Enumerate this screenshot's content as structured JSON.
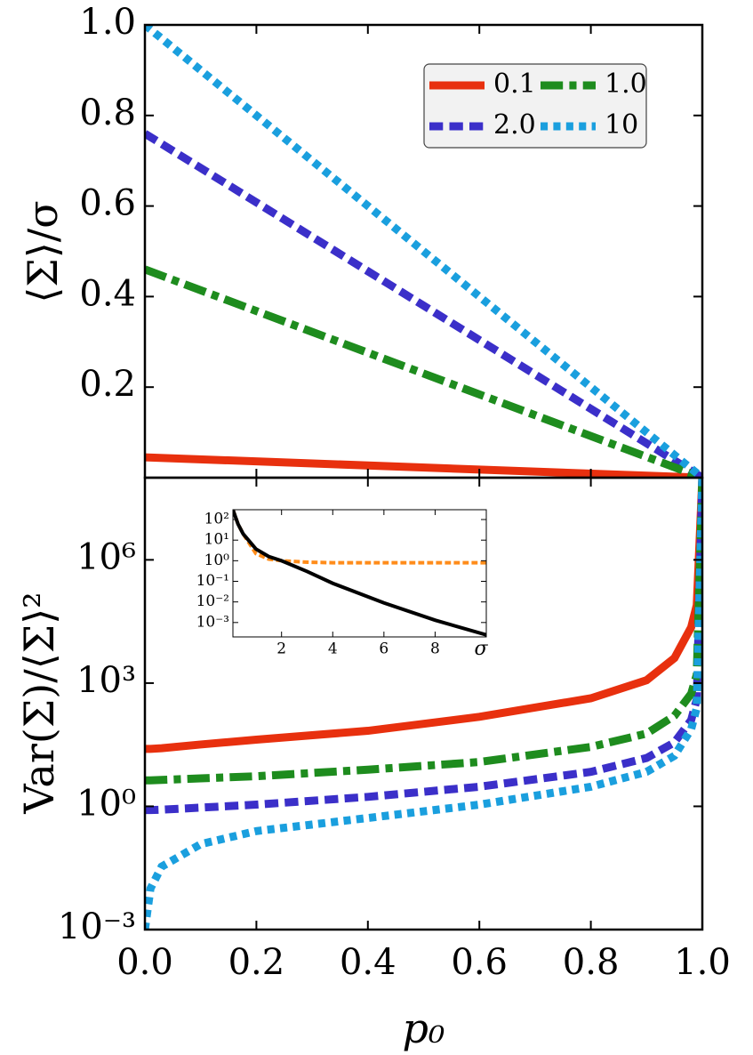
{
  "chart_data": [
    {
      "type": "line",
      "y_label": "⟨Σ⟩/σ",
      "xlim": [
        0,
        1
      ],
      "ylim": [
        0,
        1
      ],
      "yticks": [
        0.2,
        0.4,
        0.6,
        0.8,
        {
          "value": 1,
          "label": "1.0"
        }
      ],
      "legend": "upper right",
      "legend_ncol": 2,
      "x": [
        0,
        1
      ],
      "series": [
        {
          "name": "0.1",
          "color": "#e8300e",
          "linestyle": "solid",
          "values": [
            0.045,
            0
          ]
        },
        {
          "name": "2.0",
          "color": "#3b2fc9",
          "linestyle": "dashed",
          "values": [
            0.76,
            0
          ]
        },
        {
          "name": "1.0",
          "color": "#1e8c1e",
          "linestyle": "dashdot",
          "values": [
            0.46,
            0
          ]
        },
        {
          "name": "10",
          "color": "#1a9fde",
          "linestyle": "dotted",
          "values": [
            1.0,
            0
          ]
        }
      ]
    },
    {
      "type": "line",
      "y_label": "Var(Σ)/⟨Σ⟩²",
      "x_label": "p₀",
      "xlim": [
        0,
        1
      ],
      "ylim": [
        0.001,
        100000000
      ],
      "ylog": true,
      "xticks": [
        {
          "value": 0,
          "label": "0.0"
        },
        0.2,
        0.4,
        0.6,
        0.8,
        {
          "value": 1,
          "label": "1.0"
        }
      ],
      "yticks": [
        {
          "value": 0.001,
          "label": "10⁻³"
        },
        {
          "value": 1,
          "label": "10⁰"
        },
        {
          "value": 1000,
          "label": "10³"
        },
        {
          "value": 1000000,
          "label": "10⁶"
        }
      ],
      "x": [
        0,
        0.01,
        0.03,
        0.1,
        0.2,
        0.4,
        0.6,
        0.8,
        0.9,
        0.95,
        0.98,
        0.99,
        1.0
      ],
      "series": [
        {
          "color": "#e8300e",
          "linestyle": "solid",
          "values": [
            25,
            25,
            26,
            32,
            42,
            69,
            151,
            427,
            1175,
            4074,
            22909,
            79433,
            100000000
          ]
        },
        {
          "color": "#3b2fc9",
          "linestyle": "dashed",
          "values": [
            0.81,
            0.81,
            0.83,
            0.93,
            1.1,
            1.7,
            3.0,
            6.9,
            15,
            36,
            126,
            400,
            100000000
          ]
        },
        {
          "color": "#1e8c1e",
          "linestyle": "dashdot",
          "values": [
            4.3,
            4.3,
            4.4,
            4.8,
            5.4,
            7.8,
            12,
            28,
            59,
            160,
            550,
            1600,
            100000000
          ]
        },
        {
          "color": "#1a9fde",
          "linestyle": "dotted",
          "values": [
            0.001,
            0.01,
            0.034,
            0.12,
            0.25,
            0.52,
            1.1,
            3.0,
            6.9,
            17,
            76,
            250,
            100000000
          ]
        }
      ]
    },
    {
      "type": "line",
      "x_label": "σ",
      "xlim": [
        0.1,
        10
      ],
      "ylim": [
        0.0002,
        300
      ],
      "ylog": true,
      "xticks": [
        2,
        4,
        6,
        8
      ],
      "yticks": [
        {
          "value": 0.001,
          "label": "10⁻³"
        },
        {
          "value": 0.01,
          "label": "10⁻²"
        },
        {
          "value": 0.1,
          "label": "10⁻¹"
        },
        {
          "value": 1,
          "label": "10⁰"
        },
        {
          "value": 10,
          "label": "10¹"
        },
        {
          "value": 100,
          "label": "10²"
        }
      ],
      "x": [
        0.1,
        0.3,
        0.5,
        1,
        1.5,
        2,
        3,
        4,
        6,
        8,
        10
      ],
      "series": [
        {
          "color": "#ff8c1a",
          "linestyle": "dashed",
          "values": [
            300,
            60,
            20,
            2.2,
            1.2,
            1.0,
            0.85,
            0.8,
            0.8,
            0.8,
            0.8
          ]
        },
        {
          "color": "#000000",
          "linestyle": "solid",
          "values": [
            300,
            60,
            20,
            3.7,
            1.6,
            1.0,
            0.3,
            0.08,
            0.009,
            0.0013,
            0.00025
          ]
        }
      ]
    }
  ]
}
